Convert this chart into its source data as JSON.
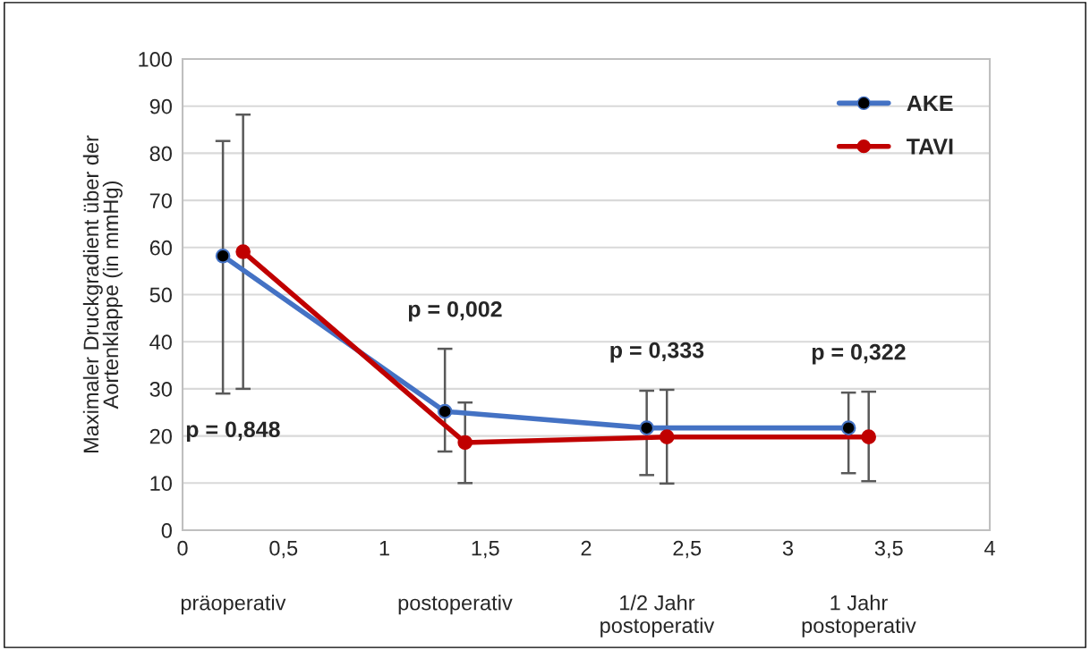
{
  "chart_data": {
    "type": "line",
    "ylabel": "Maximaler Druckgradient über der\nAortenklappe (in mmHg)",
    "xlim": [
      0,
      4
    ],
    "xticks": [
      0,
      {
        "value": 0.5,
        "label": "0,5"
      },
      1,
      {
        "value": 1.5,
        "label": "1,5"
      },
      2,
      {
        "value": 2.5,
        "label": "2,5"
      },
      3,
      {
        "value": 3.5,
        "label": "3,5"
      },
      4
    ],
    "ylim": [
      0,
      100
    ],
    "yticks": [
      0,
      10,
      20,
      30,
      40,
      50,
      60,
      70,
      80,
      90,
      100
    ],
    "grid": "y",
    "legend": "top right",
    "marker": "circle",
    "line_style": "solid",
    "series": [
      {
        "name": "AKE",
        "color": "#4472c4",
        "x": [
          0.2,
          1.3,
          2.3,
          3.3
        ],
        "values": [
          58.2,
          25.2,
          21.7,
          21.7
        ],
        "errors": [
          [
            29.0,
            82.6
          ],
          [
            16.7,
            38.5
          ],
          [
            11.7,
            29.6
          ],
          [
            12.1,
            29.2
          ]
        ]
      },
      {
        "name": "TAVI",
        "color": "#c00000",
        "x": [
          0.3,
          1.4,
          2.4,
          3.4
        ],
        "values": [
          59.1,
          18.6,
          19.8,
          19.8
        ],
        "errors": [
          [
            30.0,
            88.2
          ],
          [
            10.0,
            27.1
          ],
          [
            9.9,
            29.8
          ],
          [
            10.4,
            29.4
          ]
        ]
      }
    ],
    "annotations": [
      "p = 0,848",
      "p = 0,002",
      "p = 0,333",
      "p = 0,322",
      "präoperativ",
      "postoperativ",
      "1/2 Jahr\npostoperativ",
      "1 Jahr\npostoperativ"
    ]
  }
}
